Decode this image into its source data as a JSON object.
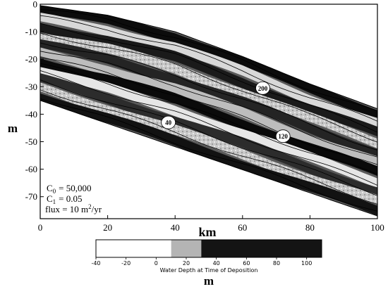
{
  "chart_data": {
    "type": "heatmap",
    "xlabel": "km",
    "ylabel": "m",
    "xlim": [
      0,
      100
    ],
    "ylim": [
      -78,
      0
    ],
    "x_ticks": [
      "0",
      "20",
      "40",
      "60",
      "80",
      "100"
    ],
    "y_ticks": [
      "0",
      "-10",
      "-20",
      "-30",
      "-40",
      "-50",
      "-60",
      "-70"
    ],
    "surface_profile": {
      "top_x": [
        0,
        20,
        40,
        60,
        80,
        100
      ],
      "top_y": [
        -0.5,
        -4,
        -10,
        -19,
        -29,
        -38
      ],
      "base_x": [
        0,
        100
      ],
      "base_y": [
        -35,
        -77
      ]
    },
    "timeline_labels": [
      {
        "text": "200",
        "x": 66,
        "y": -30.5
      },
      {
        "text": "40",
        "x": 38,
        "y": -43
      },
      {
        "text": "120",
        "x": 72,
        "y": -48
      }
    ],
    "parameters": [
      {
        "symbol": "C",
        "sub": "0",
        "value": "= 50,000"
      },
      {
        "symbol": "C",
        "sub": "1",
        "value": "= 0.05"
      },
      {
        "symbol": "flux = 10  m",
        "sup": "2",
        "value": "/yr"
      }
    ],
    "colorbar": {
      "title": "Water Depth at Time of Deposition",
      "unit": "m",
      "ticks": [
        "-40",
        "-20",
        "0",
        "20",
        "40",
        "60",
        "80",
        "100"
      ],
      "range": [
        -40,
        110
      ],
      "bins": [
        {
          "from": -50,
          "to": 10,
          "color": "#ffffff"
        },
        {
          "from": 10,
          "to": 30,
          "color": "#b4b4b4"
        },
        {
          "from": 30,
          "to": 110,
          "color": "#141414"
        }
      ]
    }
  }
}
